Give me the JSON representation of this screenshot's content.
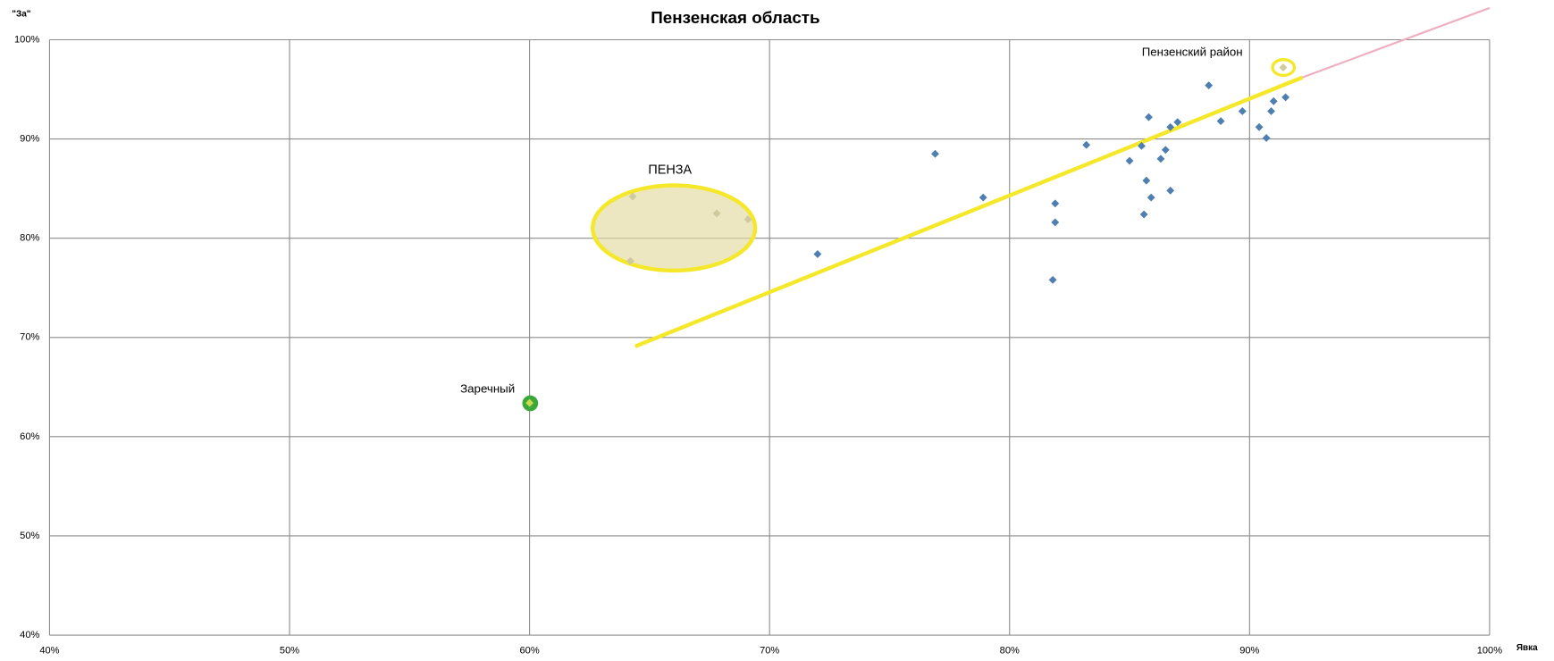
{
  "chart_data": {
    "type": "scatter",
    "title": "Пензенская область",
    "y_label": "\"За\"",
    "x_label": "Явка",
    "annotations": [
      "ПЕНЗА",
      "Пензенский район",
      "Заречный"
    ],
    "xlim": [
      40,
      100
    ],
    "ylim": [
      40,
      100
    ],
    "xticks": [
      {
        "value": 40,
        "label": "40%"
      },
      {
        "value": 50,
        "label": "50%"
      },
      {
        "value": 60,
        "label": "60%"
      },
      {
        "value": 70,
        "label": "70%"
      },
      {
        "value": 80,
        "label": "80%"
      },
      {
        "value": 90,
        "label": "90%"
      },
      {
        "value": 100,
        "label": "100%"
      }
    ],
    "yticks": [
      {
        "value": 40,
        "label": "40%"
      },
      {
        "value": 50,
        "label": "50%"
      },
      {
        "value": 60,
        "label": "60%"
      },
      {
        "value": 70,
        "label": "70%"
      },
      {
        "value": 80,
        "label": "80%"
      },
      {
        "value": 90,
        "label": "90%"
      },
      {
        "value": 100,
        "label": "100%"
      }
    ],
    "grid": true,
    "series": [
      {
        "color": "#4f7fb0",
        "x": [
          88.3,
          89.7,
          88.8,
          91.5,
          91.0,
          90.9,
          90.4,
          90.7,
          85.8,
          87.0,
          86.7,
          85.5,
          86.5,
          86.3,
          85.0,
          83.2,
          85.7,
          86.7,
          85.9,
          85.6,
          81.9,
          81.9,
          81.8,
          78.9,
          76.9,
          72.0
        ],
        "values": [
          95.4,
          92.8,
          91.8,
          94.2,
          93.8,
          92.8,
          91.2,
          90.1,
          92.2,
          91.7,
          91.2,
          89.3,
          88.9,
          88.0,
          87.8,
          89.4,
          85.8,
          84.8,
          84.1,
          82.4,
          83.5,
          81.6,
          75.8,
          84.1,
          88.5,
          78.4
        ]
      },
      {
        "color": "#cfc9a0",
        "x": [
          64.3,
          67.8,
          69.1,
          64.2
        ],
        "values": [
          84.2,
          82.5,
          81.9,
          77.7
        ]
      },
      {
        "color": "#c9dc4c",
        "x": [
          60.0
        ],
        "values": [
          63.4
        ]
      },
      {
        "color": "#cfcb9e",
        "x": [
          91.4
        ],
        "values": [
          97.2
        ]
      }
    ],
    "trendline": {
      "color": "#eeb0c0",
      "highlight_color": "#f5e82a",
      "x": [
        64.4,
        92.2,
        100
      ],
      "values": [
        69.1,
        96.2,
        103.2
      ]
    }
  }
}
